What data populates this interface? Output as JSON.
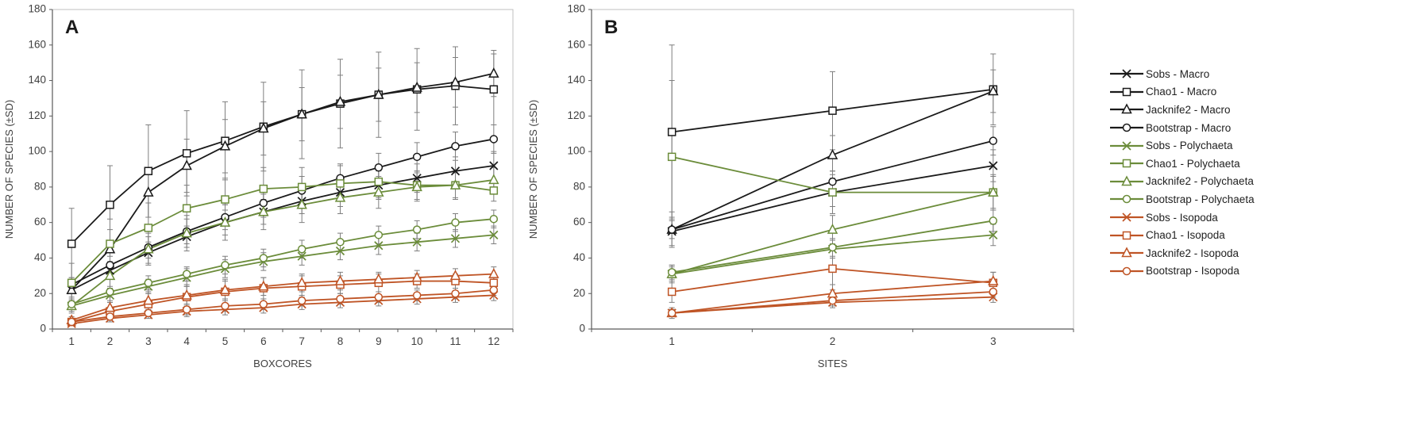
{
  "colors": {
    "macro": "#1a1a1a",
    "polychaeta": "#6b8c3a",
    "isopoda": "#bf5425",
    "error_bar": "#7f7f7f",
    "axis_line": "#595959",
    "plot_border": "#bfbfbf",
    "tick_text": "#3f3f3f"
  },
  "legend": {
    "items": [
      {
        "label": "Sobs - Macro",
        "marker": "x",
        "group": "macro"
      },
      {
        "label": "Chao1 - Macro",
        "marker": "square",
        "group": "macro"
      },
      {
        "label": "Jacknife2 - Macro",
        "marker": "triangle",
        "group": "macro"
      },
      {
        "label": "Bootstrap - Macro",
        "marker": "circle",
        "group": "macro"
      },
      {
        "label": "Sobs - Polychaeta",
        "marker": "x",
        "group": "polychaeta"
      },
      {
        "label": "Chao1 - Polychaeta",
        "marker": "square",
        "group": "polychaeta"
      },
      {
        "label": "Jacknife2 - Polychaeta",
        "marker": "triangle",
        "group": "polychaeta"
      },
      {
        "label": "Bootstrap - Polychaeta",
        "marker": "circle",
        "group": "polychaeta"
      },
      {
        "label": "Sobs - Isopoda",
        "marker": "x",
        "group": "isopoda"
      },
      {
        "label": "Chao1 - Isopoda",
        "marker": "square",
        "group": "isopoda"
      },
      {
        "label": "Jacknife2 - Isopoda",
        "marker": "triangle",
        "group": "isopoda"
      },
      {
        "label": "Bootstrap - Isopoda",
        "marker": "circle",
        "group": "isopoda"
      }
    ]
  },
  "chart_data": [
    {
      "type": "line",
      "panel": "A",
      "panel_label": "A",
      "xlabel": "BOXCORES",
      "ylabel": "NUMBER OF SPECIES (±SD)",
      "x": [
        1,
        2,
        3,
        4,
        5,
        6,
        7,
        8,
        9,
        10,
        11,
        12
      ],
      "ylim": [
        0,
        180
      ],
      "yticks": [
        0,
        20,
        40,
        60,
        80,
        100,
        120,
        140,
        160,
        180
      ],
      "grid": false,
      "series": [
        {
          "name": "Sobs - Macro",
          "marker": "x",
          "group": "macro",
          "values": [
            22,
            33,
            43,
            52,
            60,
            66,
            72,
            77,
            81,
            85,
            89,
            92
          ],
          "sd": [
            4,
            5,
            6,
            6,
            7,
            7,
            7,
            8,
            8,
            8,
            8,
            8
          ]
        },
        {
          "name": "Chao1 - Macro",
          "marker": "square",
          "group": "macro",
          "values": [
            48,
            70,
            89,
            99,
            106,
            114,
            121,
            127,
            132,
            135,
            137,
            135
          ],
          "sd": [
            20,
            22,
            26,
            24,
            22,
            25,
            25,
            25,
            24,
            23,
            22,
            20
          ]
        },
        {
          "name": "Jacknife2 - Macro",
          "marker": "triangle",
          "group": "macro",
          "values": [
            22,
            45,
            77,
            92,
            103,
            113,
            121,
            128,
            132,
            136,
            139,
            144
          ],
          "sd": [
            7,
            11,
            14,
            15,
            15,
            15,
            15,
            15,
            15,
            14,
            14,
            13
          ]
        },
        {
          "name": "Bootstrap - Macro",
          "marker": "circle",
          "group": "macro",
          "values": [
            25,
            36,
            46,
            55,
            63,
            71,
            78,
            85,
            91,
            97,
            103,
            107
          ],
          "sd": [
            4,
            5,
            6,
            7,
            7,
            8,
            8,
            8,
            8,
            8,
            8,
            8
          ]
        },
        {
          "name": "Sobs - Polychaeta",
          "marker": "x",
          "group": "polychaeta",
          "values": [
            13,
            19,
            24,
            29,
            34,
            38,
            41,
            44,
            47,
            49,
            51,
            53
          ],
          "sd": [
            3,
            4,
            4,
            5,
            5,
            5,
            5,
            5,
            5,
            5,
            5,
            5
          ]
        },
        {
          "name": "Chao1 - Polychaeta",
          "marker": "square",
          "group": "polychaeta",
          "values": [
            26,
            48,
            57,
            68,
            73,
            79,
            80,
            82,
            83,
            81,
            81,
            78
          ],
          "sd": [
            11,
            14,
            14,
            13,
            12,
            12,
            11,
            10,
            9,
            8,
            7,
            6
          ]
        },
        {
          "name": "Jacknife2 - Polychaeta",
          "marker": "triangle",
          "group": "polychaeta",
          "values": [
            13,
            30,
            45,
            54,
            60,
            66,
            70,
            74,
            77,
            80,
            81,
            84
          ],
          "sd": [
            4,
            7,
            9,
            10,
            10,
            10,
            10,
            9,
            9,
            8,
            8,
            7
          ]
        },
        {
          "name": "Bootstrap - Polychaeta",
          "marker": "circle",
          "group": "polychaeta",
          "values": [
            14,
            21,
            26,
            31,
            36,
            40,
            45,
            49,
            53,
            56,
            60,
            62
          ],
          "sd": [
            2,
            3,
            4,
            4,
            5,
            5,
            5,
            5,
            5,
            5,
            5,
            5
          ]
        },
        {
          "name": "Sobs - Isopoda",
          "marker": "x",
          "group": "isopoda",
          "values": [
            3,
            6,
            8,
            10,
            11,
            12,
            14,
            15,
            16,
            17,
            18,
            19
          ],
          "sd": [
            1,
            2,
            2,
            3,
            3,
            3,
            3,
            3,
            3,
            3,
            3,
            3
          ]
        },
        {
          "name": "Chao1 - Isopoda",
          "marker": "square",
          "group": "isopoda",
          "values": [
            4,
            10,
            14,
            18,
            21,
            23,
            24,
            25,
            26,
            27,
            27,
            26
          ],
          "sd": [
            2,
            5,
            6,
            7,
            7,
            6,
            6,
            5,
            5,
            4,
            4,
            4
          ]
        },
        {
          "name": "Jacknife2 - Isopoda",
          "marker": "triangle",
          "group": "isopoda",
          "values": [
            5,
            12,
            16,
            19,
            22,
            24,
            26,
            27,
            28,
            29,
            30,
            31
          ],
          "sd": [
            2,
            4,
            5,
            5,
            5,
            5,
            5,
            5,
            4,
            4,
            4,
            4
          ]
        },
        {
          "name": "Bootstrap - Isopoda",
          "marker": "circle",
          "group": "isopoda",
          "values": [
            4,
            7,
            9,
            11,
            13,
            14,
            16,
            17,
            18,
            19,
            20,
            22
          ],
          "sd": [
            1,
            2,
            2,
            3,
            3,
            3,
            3,
            3,
            3,
            3,
            3,
            3
          ]
        }
      ]
    },
    {
      "type": "line",
      "panel": "B",
      "panel_label": "B",
      "xlabel": "SITES",
      "ylabel": "NUMBER OF SPECIES (±SD)",
      "x": [
        1,
        2,
        3
      ],
      "ylim": [
        0,
        180
      ],
      "yticks": [
        0,
        20,
        40,
        60,
        80,
        100,
        120,
        140,
        160,
        180
      ],
      "grid": false,
      "series": [
        {
          "name": "Sobs - Macro",
          "marker": "x",
          "group": "macro",
          "values": [
            55,
            77,
            92
          ],
          "sd": [
            8,
            8,
            9
          ]
        },
        {
          "name": "Chao1 - Macro",
          "marker": "square",
          "group": "macro",
          "values": [
            111,
            123,
            135
          ],
          "sd": [
            49,
            22,
            20
          ]
        },
        {
          "name": "Jacknife2 - Macro",
          "marker": "triangle",
          "group": "macro",
          "values": [
            56,
            98,
            134
          ],
          "sd": [
            10,
            11,
            12
          ]
        },
        {
          "name": "Bootstrap - Macro",
          "marker": "circle",
          "group": "macro",
          "values": [
            56,
            83,
            106
          ],
          "sd": [
            5,
            6,
            8
          ]
        },
        {
          "name": "Sobs - Polychaeta",
          "marker": "x",
          "group": "polychaeta",
          "values": [
            31,
            45,
            53
          ],
          "sd": [
            4,
            5,
            6
          ]
        },
        {
          "name": "Chao1 - Polychaeta",
          "marker": "square",
          "group": "polychaeta",
          "values": [
            97,
            77,
            77
          ],
          "sd": [
            43,
            12,
            10
          ]
        },
        {
          "name": "Jacknife2 - Polychaeta",
          "marker": "triangle",
          "group": "polychaeta",
          "values": [
            31,
            56,
            77
          ],
          "sd": [
            5,
            8,
            9
          ]
        },
        {
          "name": "Bootstrap - Polychaeta",
          "marker": "circle",
          "group": "polychaeta",
          "values": [
            32,
            46,
            61
          ],
          "sd": [
            4,
            5,
            6
          ]
        },
        {
          "name": "Sobs - Isopoda",
          "marker": "x",
          "group": "isopoda",
          "values": [
            9,
            15,
            18
          ],
          "sd": [
            2,
            3,
            3
          ]
        },
        {
          "name": "Chao1 - Isopoda",
          "marker": "square",
          "group": "isopoda",
          "values": [
            21,
            34,
            26
          ],
          "sd": [
            6,
            12,
            6
          ]
        },
        {
          "name": "Jacknife2 - Isopoda",
          "marker": "triangle",
          "group": "isopoda",
          "values": [
            9,
            20,
            27
          ],
          "sd": [
            3,
            5,
            5
          ]
        },
        {
          "name": "Bootstrap - Isopoda",
          "marker": "circle",
          "group": "isopoda",
          "values": [
            9,
            16,
            21
          ],
          "sd": [
            2,
            3,
            3
          ]
        }
      ]
    }
  ]
}
